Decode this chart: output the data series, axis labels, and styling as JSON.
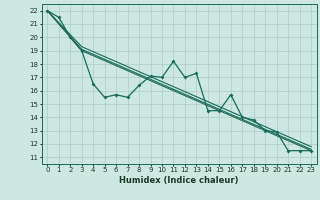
{
  "xlabel": "Humidex (Indice chaleur)",
  "background_color": "#cce8e0",
  "grid_color": "#aaccc4",
  "line_color": "#1a6b5a",
  "xlim": [
    -0.5,
    23.5
  ],
  "ylim": [
    10.5,
    22.5
  ],
  "xticks": [
    0,
    1,
    2,
    3,
    4,
    5,
    6,
    7,
    8,
    9,
    10,
    11,
    12,
    13,
    14,
    15,
    16,
    17,
    18,
    19,
    20,
    21,
    22,
    23
  ],
  "yticks": [
    11,
    12,
    13,
    14,
    15,
    16,
    17,
    18,
    19,
    20,
    21,
    22
  ],
  "series1_x": [
    0,
    1,
    2,
    3,
    4,
    5,
    6,
    7,
    8,
    9,
    10,
    11,
    12,
    13,
    14,
    15,
    16,
    17,
    18,
    19,
    20,
    21,
    22,
    23
  ],
  "series1_y": [
    22,
    21.5,
    20.0,
    19.0,
    16.5,
    15.5,
    15.7,
    15.5,
    16.4,
    17.1,
    17.0,
    18.2,
    17.0,
    17.3,
    14.5,
    14.5,
    15.7,
    14.0,
    13.8,
    13.0,
    12.9,
    11.5,
    11.5,
    11.5
  ],
  "series2_x": [
    0,
    3,
    23
  ],
  "series2_y": [
    22,
    19.0,
    11.5
  ],
  "series3_x": [
    0,
    3,
    23
  ],
  "series3_y": [
    22,
    19.1,
    11.6
  ],
  "series4_x": [
    0,
    3,
    23
  ],
  "series4_y": [
    22,
    19.3,
    11.8
  ]
}
